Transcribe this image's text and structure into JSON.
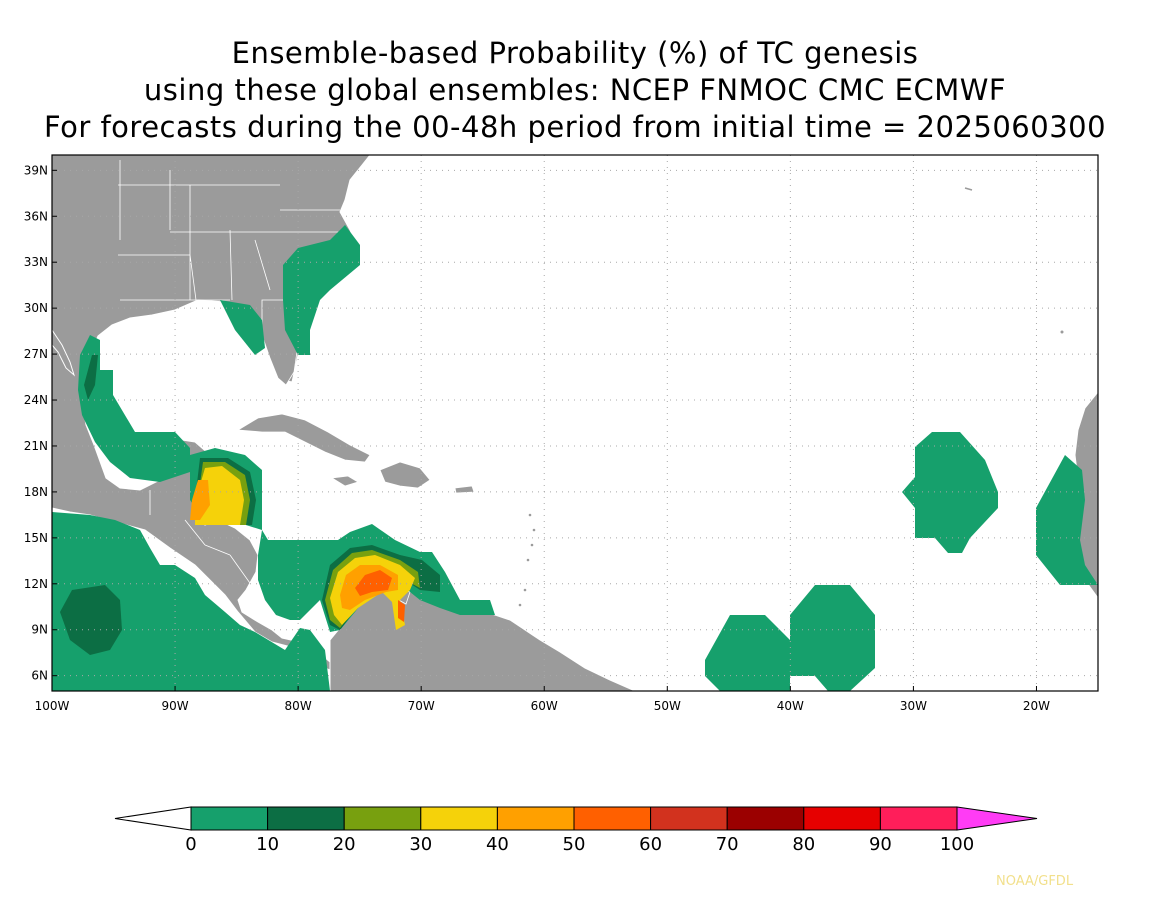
{
  "title": {
    "line1": "Ensemble-based Probability (%) of TC genesis",
    "line2": "using these global ensembles:   NCEP FNMOC CMC ECMWF",
    "line3": "For forecasts during the 00-48h period from initial time = 2025060300"
  },
  "credit": "NOAA/GFDL",
  "map": {
    "lat_labels": [
      "39N",
      "36N",
      "33N",
      "30N",
      "27N",
      "24N",
      "21N",
      "18N",
      "15N",
      "12N",
      "9N",
      "6N"
    ],
    "lon_labels": [
      "100W",
      "90W",
      "80W",
      "70W",
      "60W",
      "50W",
      "40W",
      "30W",
      "20W"
    ],
    "colors": {
      "land": "#9b9b9b",
      "ocean": "#ffffff",
      "border": "#ffffff",
      "grid": "#a8a8a8"
    }
  },
  "colorbar": {
    "labels": [
      "0",
      "10",
      "20",
      "30",
      "40",
      "50",
      "60",
      "70",
      "80",
      "90",
      "100"
    ],
    "colors": [
      "#ffffff",
      "#16a06c",
      "#0c6e44",
      "#78a00f",
      "#f5d20a",
      "#ffa000",
      "#ff6000",
      "#d2321e",
      "#9b0000",
      "#e60000",
      "#ff1e5a",
      "#ff3cf5"
    ]
  }
}
